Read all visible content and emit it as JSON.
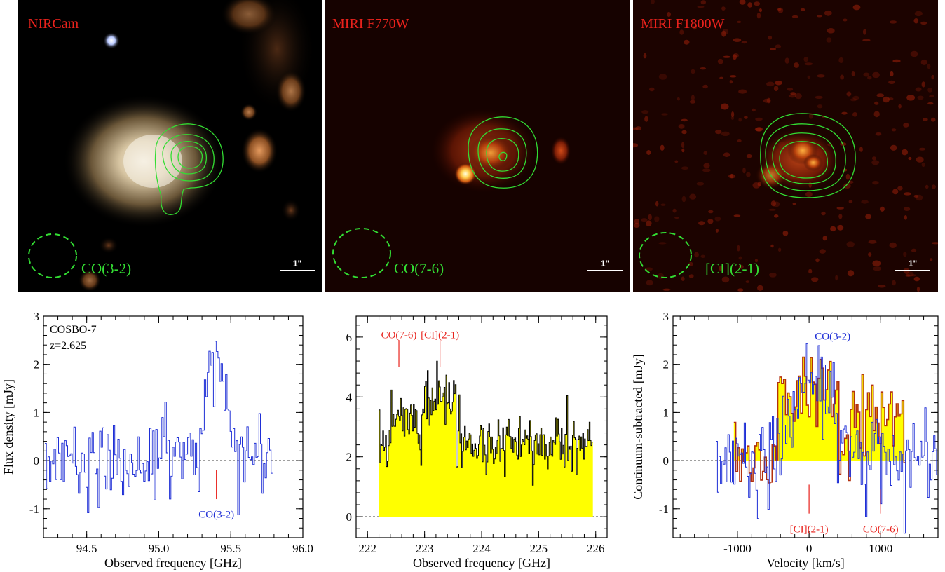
{
  "images": [
    {
      "band": "NIRCam",
      "line": "CO(3-2)",
      "scalebar": "1\""
    },
    {
      "band": "MIRI F770W",
      "line": "CO(7-6)",
      "scalebar": "1\""
    },
    {
      "band": "MIRI F1800W",
      "line": "[CI](2-1)",
      "scalebar": "1\""
    }
  ],
  "colors": {
    "band_label": "#e8221c",
    "contour": "#33dd33",
    "co32_spectrum": "#1f2fd6",
    "line_marker": "#e8221c",
    "fill": "#ffff00",
    "band_spectrum": "#000000",
    "overlay_spectrum": "#b3300e"
  },
  "chart_data": [
    {
      "type": "line",
      "subtype": "step",
      "annotation": [
        "COSBO-7",
        "z=2.625"
      ],
      "xlabel": "Observed frequency [GHz]",
      "ylabel": "Flux density [mJy]",
      "xlim": [
        94.2,
        96.0
      ],
      "ylim": [
        -1.6,
        3.0
      ],
      "xticks": [
        "94.5",
        "95.0",
        "95.5",
        "96.0"
      ],
      "yticks": [
        "-1",
        "0",
        "1",
        "2",
        "3"
      ],
      "zero_line": "dashed",
      "line_markers": [
        {
          "label": "CO(3-2)",
          "x": 95.4,
          "y_from": -0.2,
          "y_to": -0.8,
          "label_y": -1.1,
          "color": "blue"
        }
      ],
      "series": [
        {
          "x_start": 94.21,
          "x_end": 95.79,
          "noise_sd": 0.4,
          "line_center": 95.4,
          "line_peak": 2.0,
          "line_sigma": 0.07
        }
      ]
    },
    {
      "type": "line",
      "subtype": "step-filled",
      "xlabel": "Observed frequency [GHz]",
      "xlim": [
        221.8,
        226.2
      ],
      "ylim": [
        -0.7,
        6.7
      ],
      "xticks": [
        "222",
        "223",
        "224",
        "225",
        "226"
      ],
      "yticks": [
        "0",
        "2",
        "4",
        "6"
      ],
      "zero_line": "dashed",
      "line_markers": [
        {
          "label": "CO(7-6)",
          "x": 222.55,
          "y_from": 5.0,
          "y_to": 5.9,
          "label_y": 6.1
        },
        {
          "label": "[CI](2-1)",
          "x": 223.27,
          "y_from": 5.0,
          "y_to": 5.9,
          "label_y": 6.1
        }
      ],
      "series": [
        {
          "x_start": 222.2,
          "x_end": 225.95,
          "continuum": 2.4,
          "noise_sd": 0.45,
          "bumps": [
            {
              "from": 222.4,
              "to": 222.9,
              "height": 1.0
            },
            {
              "from": 222.95,
              "to": 223.55,
              "height": 1.5
            }
          ]
        }
      ]
    },
    {
      "type": "line",
      "subtype": "step",
      "xlabel": "Velocity [km/s]",
      "ylabel": "Continuum-subtracted [mJy]",
      "xlim": [
        -1900,
        1800
      ],
      "ylim": [
        -1.6,
        3.0
      ],
      "xticks": [
        "-1000",
        "0",
        "1000"
      ],
      "yticks": [
        "-1",
        "0",
        "1",
        "2",
        "3"
      ],
      "zero_line": "dashed",
      "top_labels": [
        {
          "label": "CO(3-2)",
          "x": 80,
          "y": 2.6,
          "color": "blue"
        }
      ],
      "line_markers": [
        {
          "label": "[CI](2-1)",
          "x": 0,
          "y_from": -0.5,
          "y_to": -1.1,
          "label_y": -1.4
        },
        {
          "label": "CO(7-6)",
          "x": 1000,
          "y_from": -0.6,
          "y_to": -1.1,
          "label_y": -1.4
        }
      ],
      "series": [
        {
          "name": "",
          "style": "blue",
          "x_start": -1300,
          "x_end": 1800,
          "noise_sd": 0.45,
          "line_center": 0,
          "line_peak": 1.9,
          "line_sigma": 230
        },
        {
          "name": "",
          "style": "overlay-filled",
          "x_start": -1050,
          "x_end": 1350,
          "segments": [
            {
              "from": -450,
              "to": 400,
              "height": 1.5
            },
            {
              "from": 560,
              "to": 1320,
              "height": 1.0
            }
          ]
        }
      ]
    }
  ]
}
